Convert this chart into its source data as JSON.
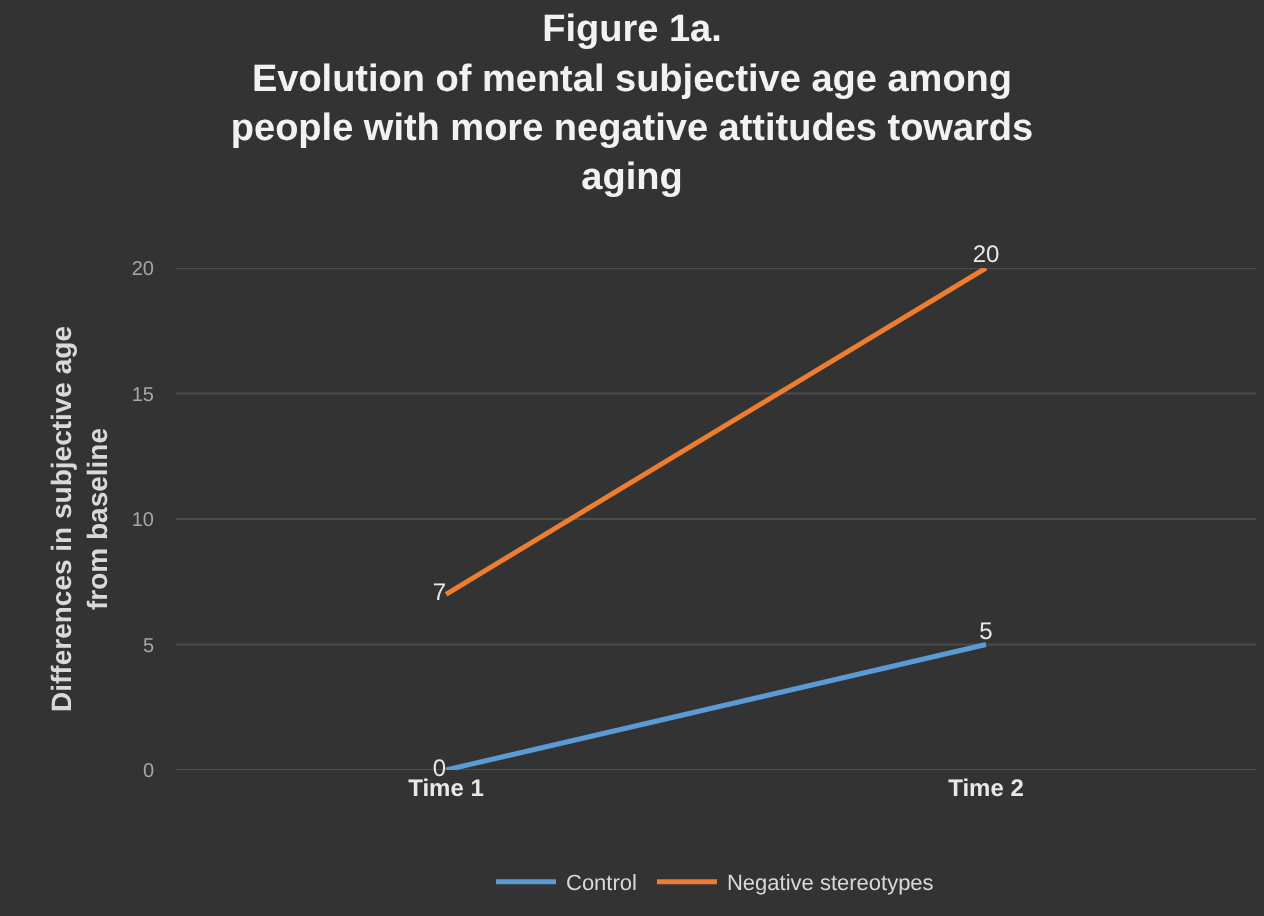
{
  "chart_data": {
    "type": "line",
    "title": "Figure 1a.\nEvolution of mental subjective age among\npeople with more negative attitudes towards\naging",
    "ylabel": "Differences in subjective age\nfrom baseline",
    "categories": [
      "Time 1",
      "Time 2"
    ],
    "series": [
      {
        "name": "Control",
        "color": "#5b9bd5",
        "values": [
          0,
          5
        ]
      },
      {
        "name": "Negative stereotypes",
        "color": "#ed7d31",
        "values": [
          7,
          20
        ]
      }
    ],
    "ylim": [
      0,
      20
    ],
    "yticks": [
      0,
      5,
      10,
      15,
      20
    ],
    "grid": "y",
    "legend": "bottom",
    "data_labels": true,
    "marker": "none",
    "line_style": "solid"
  }
}
